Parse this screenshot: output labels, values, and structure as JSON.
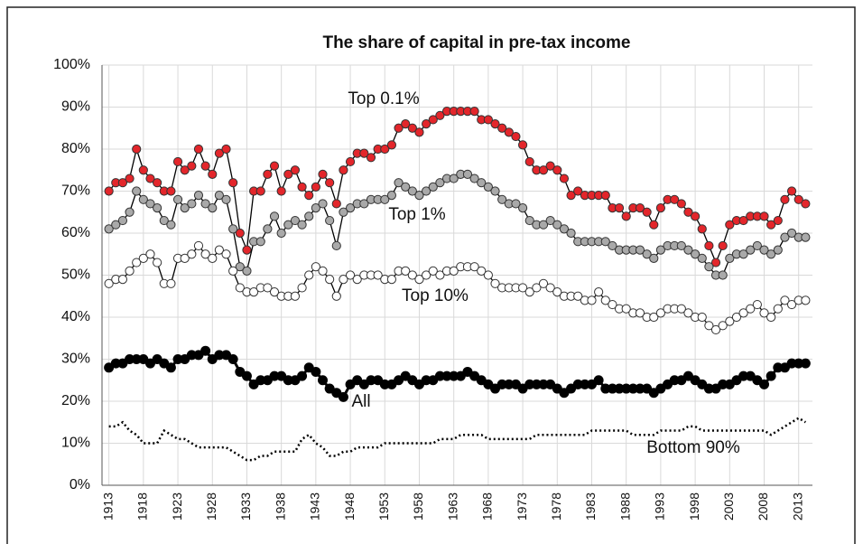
{
  "chart_data": {
    "type": "line",
    "title": "The share of capital in pre-tax income",
    "x": [
      1913,
      1914,
      1915,
      1916,
      1917,
      1918,
      1919,
      1920,
      1921,
      1922,
      1923,
      1924,
      1925,
      1926,
      1927,
      1928,
      1929,
      1930,
      1931,
      1932,
      1933,
      1934,
      1935,
      1936,
      1937,
      1938,
      1939,
      1940,
      1941,
      1942,
      1943,
      1944,
      1945,
      1946,
      1947,
      1948,
      1949,
      1950,
      1951,
      1952,
      1953,
      1954,
      1955,
      1956,
      1957,
      1958,
      1959,
      1960,
      1961,
      1962,
      1963,
      1964,
      1965,
      1966,
      1967,
      1968,
      1969,
      1970,
      1971,
      1972,
      1973,
      1974,
      1975,
      1976,
      1977,
      1978,
      1979,
      1980,
      1981,
      1982,
      1983,
      1984,
      1985,
      1986,
      1987,
      1988,
      1989,
      1990,
      1991,
      1992,
      1993,
      1994,
      1995,
      1996,
      1997,
      1998,
      1999,
      2000,
      2001,
      2002,
      2003,
      2004,
      2005,
      2006,
      2007,
      2008,
      2009,
      2010,
      2011,
      2012,
      2013,
      2014
    ],
    "xlim": [
      1912,
      2015
    ],
    "xticks": [
      1913,
      1918,
      1923,
      1928,
      1933,
      1938,
      1943,
      1948,
      1953,
      1958,
      1963,
      1968,
      1973,
      1978,
      1983,
      1988,
      1993,
      1998,
      2003,
      2008,
      2013
    ],
    "ylim": [
      0,
      100
    ],
    "yticks": [
      {
        "value": 0,
        "label": "0%"
      },
      {
        "value": 10,
        "label": "10%"
      },
      {
        "value": 20,
        "label": "20%"
      },
      {
        "value": 30,
        "label": "30%"
      },
      {
        "value": 40,
        "label": "40%"
      },
      {
        "value": 50,
        "label": "50%"
      },
      {
        "value": 60,
        "label": "60%"
      },
      {
        "value": 70,
        "label": "70%"
      },
      {
        "value": 80,
        "label": "80%"
      },
      {
        "value": 90,
        "label": "90%"
      },
      {
        "value": 100,
        "label": "100%"
      }
    ],
    "grid": true,
    "series": [
      {
        "name": "Top 0.1%",
        "color": "#e3262b",
        "markers": true,
        "line_style": "solid",
        "values": [
          70,
          72,
          72,
          73,
          80,
          75,
          73,
          72,
          70,
          70,
          77,
          75,
          76,
          80,
          76,
          74,
          79,
          80,
          72,
          60,
          56,
          70,
          70,
          74,
          76,
          70,
          74,
          75,
          71,
          69,
          71,
          74,
          72,
          67,
          75,
          77,
          79,
          79,
          78,
          80,
          80,
          81,
          85,
          86,
          85,
          84,
          86,
          87,
          88,
          89,
          89,
          89,
          89,
          89,
          87,
          87,
          86,
          85,
          84,
          83,
          81,
          77,
          75,
          75,
          76,
          75,
          73,
          69,
          70,
          69,
          69,
          69,
          69,
          66,
          66,
          64,
          66,
          66,
          65,
          62,
          66,
          68,
          68,
          67,
          65,
          64,
          61,
          57,
          53,
          57,
          62,
          63,
          63,
          64,
          64,
          64,
          62,
          63,
          68,
          70,
          68,
          67
        ]
      },
      {
        "name": "Top 1%",
        "color": "#a9a9a9",
        "markers": true,
        "line_style": "solid",
        "values": [
          61,
          62,
          63,
          65,
          70,
          68,
          67,
          66,
          63,
          62,
          68,
          66,
          67,
          69,
          67,
          66,
          69,
          68,
          61,
          52,
          51,
          58,
          58,
          61,
          64,
          60,
          62,
          63,
          62,
          64,
          66,
          67,
          63,
          57,
          65,
          66,
          67,
          67,
          68,
          68,
          68,
          69,
          72,
          71,
          70,
          69,
          70,
          71,
          72,
          73,
          73,
          74,
          74,
          73,
          72,
          71,
          70,
          68,
          67,
          67,
          66,
          63,
          62,
          62,
          63,
          62,
          61,
          60,
          58,
          58,
          58,
          58,
          58,
          57,
          56,
          56,
          56,
          56,
          55,
          54,
          56,
          57,
          57,
          57,
          56,
          55,
          54,
          52,
          50,
          50,
          54,
          55,
          55,
          56,
          57,
          56,
          55,
          56,
          59,
          60,
          59,
          59
        ]
      },
      {
        "name": "Top 10%",
        "color": "#ffffff",
        "markers": true,
        "line_style": "solid",
        "values": [
          48,
          49,
          49,
          51,
          53,
          54,
          55,
          53,
          48,
          48,
          54,
          54,
          55,
          57,
          55,
          54,
          56,
          55,
          51,
          47,
          46,
          46,
          47,
          47,
          46,
          45,
          45,
          45,
          47,
          50,
          52,
          51,
          49,
          45,
          49,
          50,
          49,
          50,
          50,
          50,
          49,
          49,
          51,
          51,
          50,
          49,
          50,
          51,
          50,
          51,
          51,
          52,
          52,
          52,
          51,
          50,
          48,
          47,
          47,
          47,
          47,
          46,
          47,
          48,
          47,
          46,
          45,
          45,
          45,
          44,
          44,
          46,
          44,
          43,
          42,
          42,
          41,
          41,
          40,
          40,
          41,
          42,
          42,
          42,
          41,
          40,
          40,
          38,
          37,
          38,
          39,
          40,
          41,
          42,
          43,
          41,
          40,
          42,
          44,
          43,
          44,
          44
        ]
      },
      {
        "name": "All",
        "color": "#000000",
        "markers": true,
        "line_style": "solid",
        "values": [
          28,
          29,
          29,
          30,
          30,
          30,
          29,
          30,
          29,
          28,
          30,
          30,
          31,
          31,
          32,
          30,
          31,
          31,
          30,
          27,
          26,
          24,
          25,
          25,
          26,
          26,
          25,
          25,
          26,
          28,
          27,
          25,
          23,
          22,
          21,
          24,
          25,
          24,
          25,
          25,
          24,
          24,
          25,
          26,
          25,
          24,
          25,
          25,
          26,
          26,
          26,
          26,
          27,
          26,
          25,
          24,
          23,
          24,
          24,
          24,
          23,
          24,
          24,
          24,
          24,
          23,
          22,
          23,
          24,
          24,
          24,
          25,
          23,
          23,
          23,
          23,
          23,
          23,
          23,
          22,
          23,
          24,
          25,
          25,
          26,
          25,
          24,
          23,
          23,
          24,
          24,
          25,
          26,
          26,
          25,
          24,
          26,
          28,
          28,
          29,
          29,
          29
        ]
      },
      {
        "name": "Bottom 90%",
        "color": "#000000",
        "markers": false,
        "line_style": "dotted",
        "values": [
          14,
          14,
          15,
          13,
          12,
          10,
          10,
          10,
          13,
          12,
          11,
          11,
          10,
          9,
          9,
          9,
          9,
          9,
          8,
          7,
          6,
          6,
          7,
          7,
          8,
          8,
          8,
          8,
          11,
          12,
          10,
          9,
          7,
          7,
          8,
          8,
          9,
          9,
          9,
          9,
          10,
          10,
          10,
          10,
          10,
          10,
          10,
          10,
          11,
          11,
          11,
          12,
          12,
          12,
          12,
          11,
          11,
          11,
          11,
          11,
          11,
          11,
          12,
          12,
          12,
          12,
          12,
          12,
          12,
          12,
          13,
          13,
          13,
          13,
          13,
          13,
          12,
          12,
          12,
          12,
          13,
          13,
          13,
          13,
          14,
          14,
          13,
          13,
          13,
          13,
          13,
          13,
          13,
          13,
          13,
          13,
          12,
          13,
          14,
          15,
          16,
          15
        ]
      }
    ]
  }
}
